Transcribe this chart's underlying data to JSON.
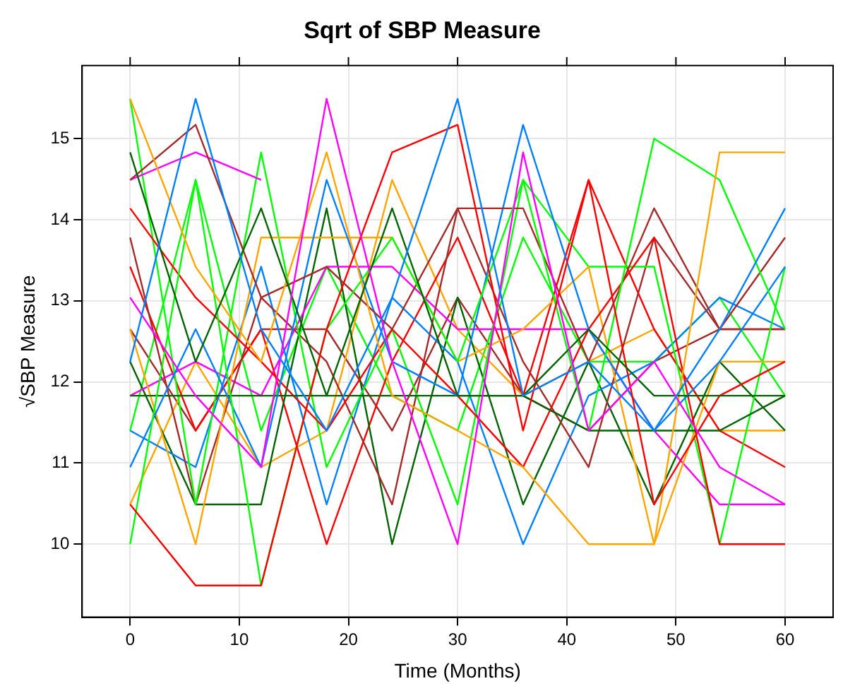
{
  "chart_data": {
    "type": "line",
    "title": "Sqrt of SBP Measure",
    "xlabel": "Time (Months)",
    "ylabel": "√SBP Measure",
    "x": [
      0,
      6,
      12,
      18,
      24,
      30,
      36,
      42,
      48,
      54,
      60
    ],
    "xlim": [
      -4.4,
      64.4
    ],
    "xticks": [
      0,
      10,
      20,
      30,
      40,
      50,
      60
    ],
    "ylim": [
      9.1,
      15.9
    ],
    "yticks": [
      10,
      11,
      12,
      13,
      14,
      15
    ],
    "grid": true,
    "legend": false,
    "marker": "none",
    "line_style": "solid",
    "series": [
      {
        "color": "#0080ff",
        "values": [
          12.25,
          15.49,
          12.65,
          11.4,
          13.04,
          15.49,
          11.83,
          12.25,
          11.4,
          12.65,
          14.14
        ]
      },
      {
        "color": "#ff00ff",
        "values": [
          13.04,
          11.83,
          10.95,
          15.49,
          12.25,
          10.0,
          14.83,
          11.4,
          12.25,
          10.95,
          10.49
        ]
      },
      {
        "color": "#006400",
        "values": [
          14.83,
          12.25,
          14.14,
          11.83,
          14.14,
          11.83,
          11.83,
          12.65,
          11.83,
          11.83,
          11.83
        ]
      },
      {
        "color": "#ff0000",
        "values": [
          10.49,
          9.49,
          9.49,
          12.65,
          14.83,
          15.17,
          11.4,
          14.49,
          10.49,
          11.83,
          12.25
        ]
      },
      {
        "color": "#ffa500",
        "values": [
          15.49,
          13.42,
          12.25,
          14.83,
          11.83,
          11.4,
          10.95,
          10.0,
          10.0,
          14.83,
          14.83
        ]
      },
      {
        "color": "#00ff00",
        "values": [
          10.0,
          14.49,
          9.49,
          12.65,
          13.78,
          12.25,
          14.49,
          11.4,
          15.0,
          14.49,
          12.65
        ]
      },
      {
        "color": "#a52a2a",
        "values": [
          14.49,
          15.17,
          13.04,
          13.42,
          12.65,
          14.14,
          14.14,
          12.25,
          14.14,
          12.65,
          13.78
        ]
      },
      {
        "color": "#0080ff",
        "values": [
          10.95,
          12.65,
          10.95,
          14.49,
          12.25,
          11.83,
          15.17,
          12.65,
          11.4,
          12.25,
          13.42
        ]
      },
      {
        "color": "#ff00ff",
        "values": [
          14.49,
          14.83,
          14.49,
          null,
          null,
          null,
          null,
          null,
          null,
          null,
          null
        ]
      },
      {
        "color": "#006400",
        "values": [
          11.83,
          11.83,
          11.83,
          11.83,
          11.83,
          11.83,
          11.83,
          11.4,
          11.4,
          11.4,
          11.83
        ]
      },
      {
        "color": "#ff0000",
        "values": [
          14.14,
          13.04,
          12.25,
          11.4,
          12.65,
          11.83,
          10.95,
          12.65,
          13.78,
          10.0,
          10.0
        ]
      },
      {
        "color": "#ffa500",
        "values": [
          12.65,
          10.0,
          13.78,
          13.78,
          13.78,
          12.25,
          12.65,
          13.42,
          10.0,
          12.25,
          12.25
        ]
      },
      {
        "color": "#00ff00",
        "values": [
          15.49,
          10.49,
          14.83,
          10.95,
          12.65,
          10.49,
          14.49,
          13.42,
          13.42,
          10.0,
          13.42
        ]
      },
      {
        "color": "#a52a2a",
        "values": [
          13.78,
          10.49,
          13.04,
          12.25,
          10.49,
          14.14,
          12.25,
          10.95,
          13.78,
          12.65,
          12.65
        ]
      },
      {
        "color": "#0080ff",
        "values": [
          11.4,
          10.95,
          13.42,
          10.49,
          13.04,
          12.25,
          10.0,
          11.83,
          12.25,
          13.04,
          12.65
        ]
      },
      {
        "color": "#ff00ff",
        "values": [
          11.83,
          12.25,
          11.83,
          13.42,
          13.42,
          12.65,
          12.65,
          12.65,
          11.4,
          10.49,
          10.49
        ]
      },
      {
        "color": "#006400",
        "values": [
          12.25,
          10.49,
          10.49,
          14.14,
          10.0,
          13.04,
          10.49,
          12.25,
          10.49,
          12.25,
          11.4
        ]
      },
      {
        "color": "#ff0000",
        "values": [
          13.42,
          11.4,
          12.65,
          10.0,
          12.25,
          13.78,
          11.83,
          14.49,
          12.65,
          11.4,
          10.95
        ]
      },
      {
        "color": "#ffa500",
        "values": [
          10.49,
          12.25,
          10.95,
          11.4,
          14.49,
          12.65,
          11.83,
          12.25,
          12.65,
          11.4,
          11.4
        ]
      },
      {
        "color": "#00ff00",
        "values": [
          11.4,
          14.49,
          11.4,
          13.42,
          11.83,
          11.4,
          13.78,
          12.25,
          12.25,
          13.04,
          11.83
        ]
      },
      {
        "color": "#a52a2a",
        "values": [
          12.65,
          11.4,
          12.65,
          12.65,
          11.4,
          13.04,
          11.83,
          11.4,
          12.25,
          12.65,
          12.65
        ]
      }
    ]
  }
}
